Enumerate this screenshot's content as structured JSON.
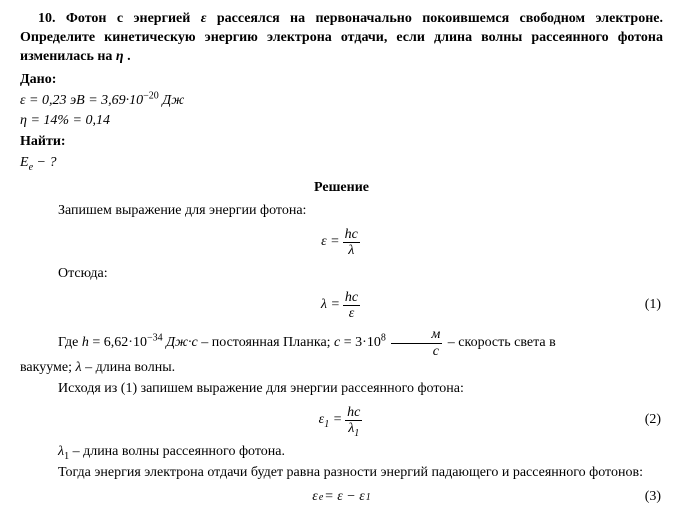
{
  "problem": {
    "number": "10.",
    "text_part1": "Фотон с энергией ",
    "sym_eps": "ε",
    "text_part2": " рассеялся на первоначально покоившемся свободном электроне. Определите кинетическую энергию электрона отдачи, если длина волны рассеянного фотона изменилась на ",
    "sym_eta": "η",
    "text_part3": " ."
  },
  "given": {
    "label": "Дано:",
    "line1_a": "ε = 0,23 ",
    "line1_unit1": "эВ",
    "line1_b": " = 3,69·10",
    "line1_exp": "−20",
    "line1_unit2": " Дж",
    "line2": "η = 14% = 0,14"
  },
  "find": {
    "label": "Найти:",
    "expr": "E",
    "sub": "e",
    "question": " − ?"
  },
  "solution": {
    "heading": "Решение",
    "p1": "Запишем выражение для энергии фотона:",
    "eq1_lhs": "ε =",
    "eq1_num": "hc",
    "eq1_den": "λ",
    "p2": "Отсюда:",
    "eq2_lhs": "λ =",
    "eq2_num": "hc",
    "eq2_den": "ε",
    "eq2_no": "(1)",
    "p3_a": "Где ",
    "p3_h": "h",
    "p3_b": " = 6,62·10",
    "p3_exp": "−34",
    "p3_unit1": " Дж·с",
    "p3_c": " – постоянная Планка; ",
    "p3_cvar": "c",
    "p3_d": " = 3·10",
    "p3_exp2": "8",
    "frac_m": "м",
    "frac_s": "с",
    "p3_e": " – скорость света в",
    "p3_line2a": "вакууме; ",
    "p3_lambda": "λ",
    "p3_line2b": " – длина волны.",
    "p4": "Исходя из (1) запишем выражение для энергии рассеянного фотона:",
    "eq3_lhs_sym": "ε",
    "eq3_lhs_sub": "1",
    "eq3_eq": " =",
    "eq3_num": "hc",
    "eq3_den_sym": "λ",
    "eq3_den_sub": "1",
    "eq3_no": "(2)",
    "p5_sym": "λ",
    "p5_sub": "1",
    "p5_text": " – длина волны рассеянного фотона.",
    "p6": "Тогда энергия электрона отдачи будет равна разности энергий падающего и рассеянного фотонов:",
    "eq4_E": "ε",
    "eq4_sub_e": "e",
    "eq4_mid": " = ε − ε",
    "eq4_sub_1": "1",
    "eq4_no": "(3)"
  }
}
